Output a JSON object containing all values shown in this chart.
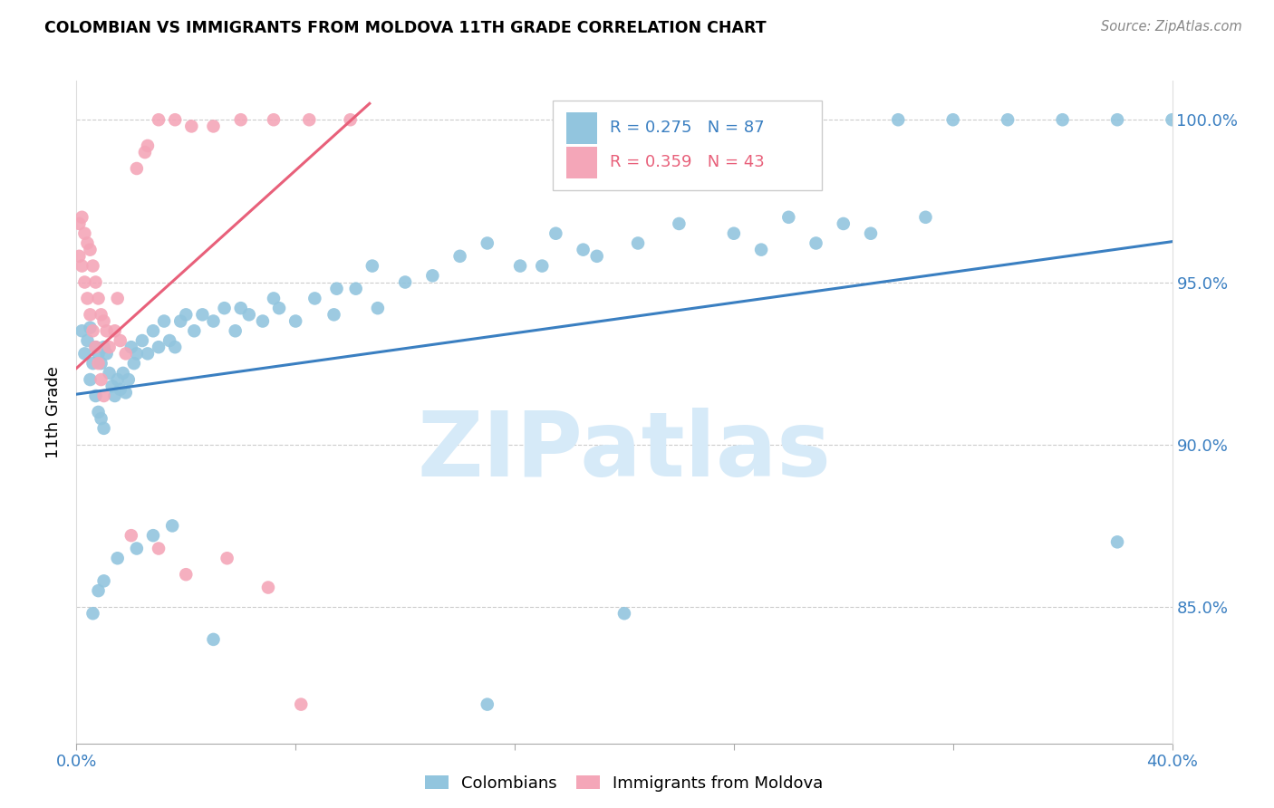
{
  "title": "COLOMBIAN VS IMMIGRANTS FROM MOLDOVA 11TH GRADE CORRELATION CHART",
  "source": "Source: ZipAtlas.com",
  "ylabel": "11th Grade",
  "xmin": 0.0,
  "xmax": 0.4,
  "ymin": 0.808,
  "ymax": 1.012,
  "yticks": [
    0.85,
    0.9,
    0.95,
    1.0
  ],
  "ytick_labels": [
    "85.0%",
    "90.0%",
    "95.0%",
    "100.0%"
  ],
  "xticks": [
    0.0,
    0.08,
    0.16,
    0.24,
    0.32,
    0.4
  ],
  "color_blue": "#92c5de",
  "color_pink": "#f4a6b8",
  "line_blue": "#3a7fc1",
  "line_pink": "#e8607a",
  "text_blue": "#3a7fc1",
  "watermark_color": "#d6eaf8",
  "blue_line_x": [
    0.0,
    0.4
  ],
  "blue_line_y": [
    0.9155,
    0.9625
  ],
  "pink_line_x": [
    0.0,
    0.107
  ],
  "pink_line_y": [
    0.9235,
    1.005
  ],
  "blue_scatter_x": [
    0.002,
    0.003,
    0.004,
    0.005,
    0.005,
    0.006,
    0.007,
    0.007,
    0.008,
    0.008,
    0.009,
    0.009,
    0.01,
    0.01,
    0.011,
    0.012,
    0.013,
    0.014,
    0.015,
    0.016,
    0.017,
    0.018,
    0.019,
    0.02,
    0.021,
    0.022,
    0.024,
    0.026,
    0.028,
    0.03,
    0.032,
    0.034,
    0.036,
    0.038,
    0.04,
    0.043,
    0.046,
    0.05,
    0.054,
    0.058,
    0.063,
    0.068,
    0.074,
    0.08,
    0.087,
    0.094,
    0.102,
    0.11,
    0.12,
    0.13,
    0.14,
    0.15,
    0.162,
    0.175,
    0.19,
    0.205,
    0.22,
    0.24,
    0.26,
    0.28,
    0.3,
    0.32,
    0.34,
    0.36,
    0.38,
    0.4,
    0.25,
    0.27,
    0.29,
    0.31,
    0.17,
    0.185,
    0.095,
    0.108,
    0.06,
    0.072,
    0.035,
    0.028,
    0.022,
    0.015,
    0.01,
    0.008,
    0.006,
    0.05,
    0.38,
    0.2,
    0.15
  ],
  "blue_scatter_y": [
    0.935,
    0.928,
    0.932,
    0.936,
    0.92,
    0.925,
    0.93,
    0.915,
    0.928,
    0.91,
    0.925,
    0.908,
    0.93,
    0.905,
    0.928,
    0.922,
    0.918,
    0.915,
    0.92,
    0.917,
    0.922,
    0.916,
    0.92,
    0.93,
    0.925,
    0.928,
    0.932,
    0.928,
    0.935,
    0.93,
    0.938,
    0.932,
    0.93,
    0.938,
    0.94,
    0.935,
    0.94,
    0.938,
    0.942,
    0.935,
    0.94,
    0.938,
    0.942,
    0.938,
    0.945,
    0.94,
    0.948,
    0.942,
    0.95,
    0.952,
    0.958,
    0.962,
    0.955,
    0.965,
    0.958,
    0.962,
    0.968,
    0.965,
    0.97,
    0.968,
    1.0,
    1.0,
    1.0,
    1.0,
    1.0,
    1.0,
    0.96,
    0.962,
    0.965,
    0.97,
    0.955,
    0.96,
    0.948,
    0.955,
    0.942,
    0.945,
    0.875,
    0.872,
    0.868,
    0.865,
    0.858,
    0.855,
    0.848,
    0.84,
    0.87,
    0.848,
    0.82
  ],
  "pink_scatter_x": [
    0.001,
    0.001,
    0.002,
    0.002,
    0.003,
    0.003,
    0.004,
    0.004,
    0.005,
    0.005,
    0.006,
    0.006,
    0.007,
    0.007,
    0.008,
    0.008,
    0.009,
    0.009,
    0.01,
    0.01,
    0.011,
    0.012,
    0.014,
    0.016,
    0.018,
    0.022,
    0.026,
    0.03,
    0.036,
    0.042,
    0.05,
    0.06,
    0.072,
    0.085,
    0.1,
    0.02,
    0.03,
    0.04,
    0.055,
    0.07,
    0.015,
    0.025,
    0.082
  ],
  "pink_scatter_y": [
    0.968,
    0.958,
    0.97,
    0.955,
    0.965,
    0.95,
    0.962,
    0.945,
    0.96,
    0.94,
    0.955,
    0.935,
    0.95,
    0.93,
    0.945,
    0.925,
    0.94,
    0.92,
    0.938,
    0.915,
    0.935,
    0.93,
    0.935,
    0.932,
    0.928,
    0.985,
    0.992,
    1.0,
    1.0,
    0.998,
    0.998,
    1.0,
    1.0,
    1.0,
    1.0,
    0.872,
    0.868,
    0.86,
    0.865,
    0.856,
    0.945,
    0.99,
    0.82
  ]
}
